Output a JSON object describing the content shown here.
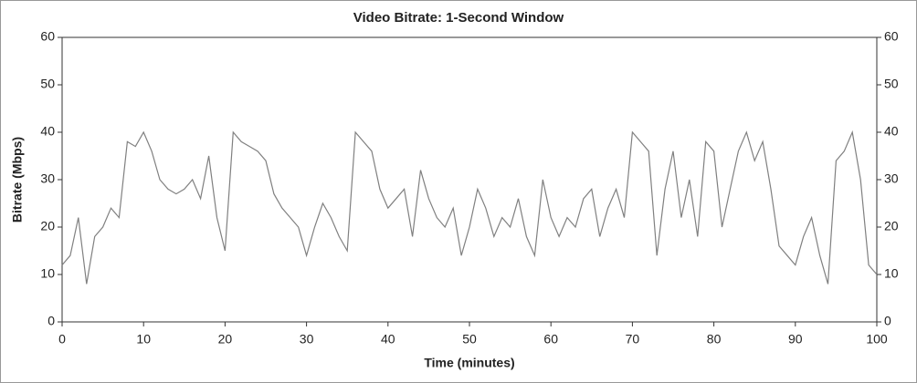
{
  "chart_data": {
    "type": "line",
    "title": "Video Bitrate: 1-Second Window",
    "x_label": "Time (minutes)",
    "y_label": "Bitrate (Mbps)",
    "x": [
      0,
      1,
      2,
      3,
      4,
      5,
      6,
      7,
      8,
      9,
      10,
      11,
      12,
      13,
      14,
      15,
      16,
      17,
      18,
      19,
      20,
      21,
      22,
      23,
      24,
      25,
      26,
      27,
      28,
      29,
      30,
      31,
      32,
      33,
      34,
      35,
      36,
      37,
      38,
      39,
      40,
      41,
      42,
      43,
      44,
      45,
      46,
      47,
      48,
      49,
      50,
      51,
      52,
      53,
      54,
      55,
      56,
      57,
      58,
      59,
      60,
      61,
      62,
      63,
      64,
      65,
      66,
      67,
      68,
      69,
      70,
      71,
      72,
      73,
      74,
      75,
      76,
      77,
      78,
      79,
      80,
      81,
      82,
      83,
      84,
      85,
      86,
      87,
      88,
      89,
      90,
      91,
      92,
      93,
      94,
      95,
      96,
      97,
      98,
      99,
      100
    ],
    "series": [
      {
        "name": "Video Bitrate",
        "color": "#808080",
        "values": [
          12,
          14,
          22,
          8,
          18,
          20,
          24,
          22,
          38,
          37,
          40,
          36,
          30,
          28,
          27,
          28,
          30,
          26,
          35,
          22,
          15,
          40,
          38,
          37,
          36,
          34,
          27,
          24,
          22,
          20,
          14,
          20,
          25,
          22,
          18,
          15,
          40,
          38,
          36,
          28,
          24,
          26,
          28,
          18,
          32,
          26,
          22,
          20,
          24,
          14,
          20,
          28,
          24,
          18,
          22,
          20,
          26,
          18,
          14,
          30,
          22,
          18,
          22,
          20,
          26,
          28,
          18,
          24,
          28,
          22,
          40,
          38,
          36,
          14,
          28,
          36,
          22,
          30,
          18,
          38,
          36,
          20,
          28,
          36,
          40,
          34,
          38,
          28,
          16,
          14,
          12,
          18,
          22,
          14,
          8,
          34,
          36,
          40,
          30,
          12,
          10
        ]
      }
    ],
    "xlim": [
      0,
      100
    ],
    "xticks": [
      0,
      10,
      20,
      30,
      40,
      50,
      60,
      70,
      80,
      90,
      100
    ],
    "ylim": [
      0,
      60
    ],
    "yticks": [
      0,
      10,
      20,
      30,
      40,
      50,
      60
    ],
    "grid": false
  }
}
